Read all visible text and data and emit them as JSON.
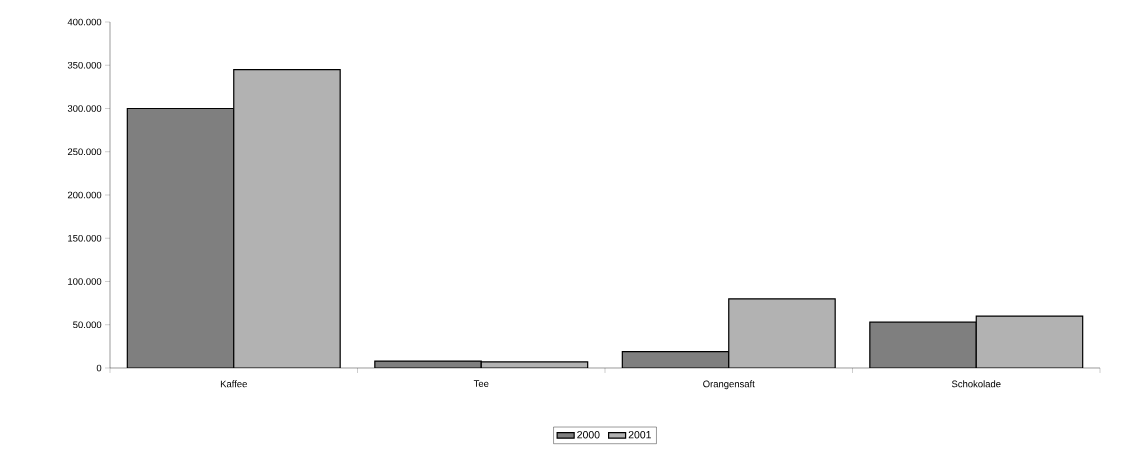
{
  "chart_data": {
    "type": "bar",
    "categories": [
      "Kaffee",
      "Tee",
      "Orangensaft",
      "Schokolade"
    ],
    "series": [
      {
        "name": "2000",
        "color": "#7f7f7f",
        "values": [
          300000,
          8000,
          19000,
          53000
        ]
      },
      {
        "name": "2001",
        "color": "#b2b2b2",
        "values": [
          345000,
          7000,
          80000,
          60000
        ]
      }
    ],
    "ylim": [
      0,
      400000
    ],
    "yticks": [
      {
        "value": 0,
        "label": "0"
      },
      {
        "value": 50000,
        "label": "50.000"
      },
      {
        "value": 100000,
        "label": "100.000"
      },
      {
        "value": 150000,
        "label": "150.000"
      },
      {
        "value": 200000,
        "label": "200.000"
      },
      {
        "value": 250000,
        "label": "250.000"
      },
      {
        "value": 300000,
        "label": "300.000"
      },
      {
        "value": 350000,
        "label": "350.000"
      },
      {
        "value": 400000,
        "label": "400.000"
      }
    ],
    "grid": false,
    "legend": "bottom"
  }
}
